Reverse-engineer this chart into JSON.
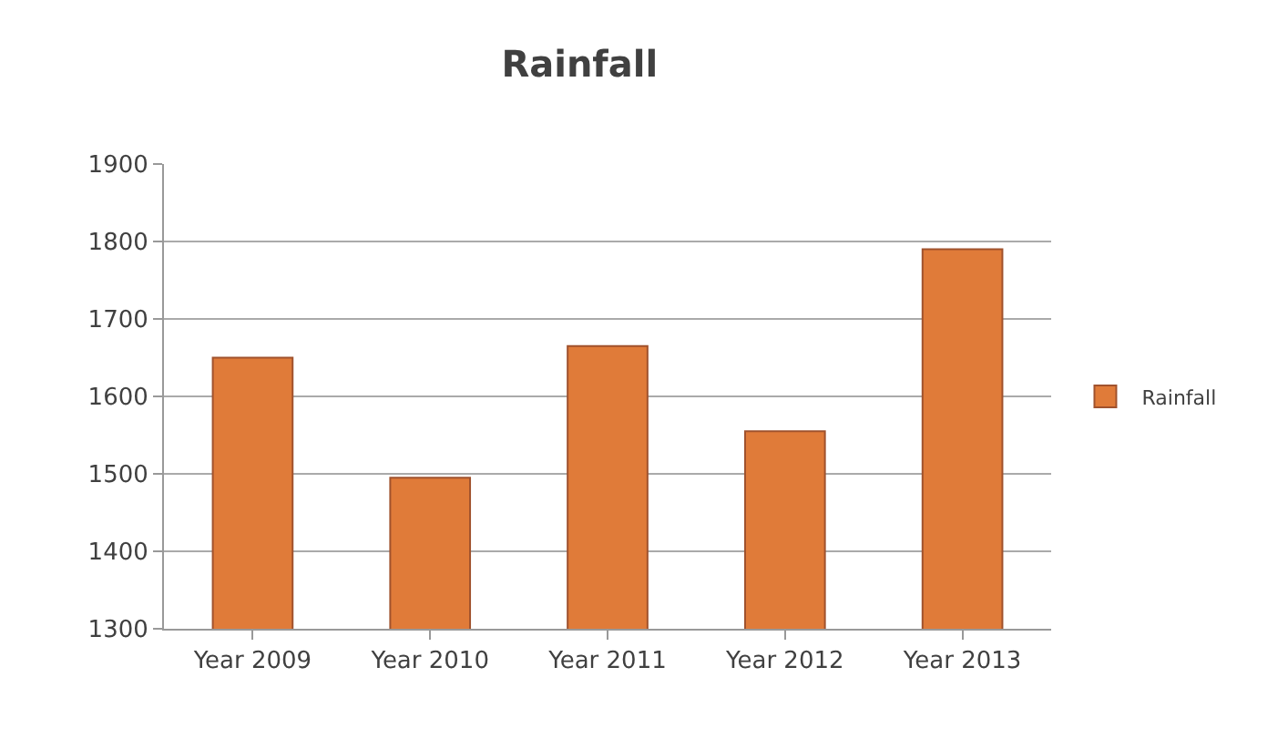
{
  "chart_data": {
    "type": "bar",
    "title": "Rainfall",
    "categories": [
      "Year 2009",
      "Year 2010",
      "Year 2011",
      "Year 2012",
      "Year 2013"
    ],
    "series": [
      {
        "name": "Rainfall",
        "color": "#e07b39",
        "values": [
          1650,
          1495,
          1665,
          1555,
          1790
        ]
      }
    ],
    "ylim": [
      1300,
      1900
    ],
    "yticks": [
      1300,
      1400,
      1500,
      1600,
      1700,
      1800,
      1900
    ],
    "grid": "y",
    "legend": "right"
  }
}
